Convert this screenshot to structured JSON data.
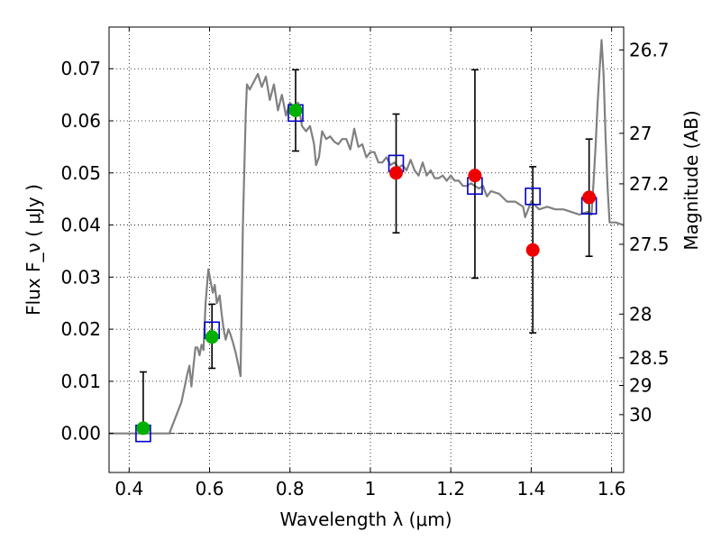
{
  "chart_data": {
    "type": "scatter",
    "xlabel": "Wavelength  λ (μm)",
    "ylabel": "Flux  F_ν  ( μJy )",
    "ylabel_right": "Magnitude (AB)",
    "xlim": [
      0.35,
      1.63
    ],
    "ylim": [
      -0.0075,
      0.078
    ],
    "grid": true,
    "x_ticks": [
      0.4,
      0.6,
      0.8,
      1.0,
      1.2,
      1.4,
      1.6
    ],
    "x_tick_labels": [
      "0.4",
      "0.6",
      "0.8",
      "1",
      "1.2",
      "1.4",
      "1.6"
    ],
    "y_ticks": [
      0.0,
      0.01,
      0.02,
      0.03,
      0.04,
      0.05,
      0.06,
      0.07
    ],
    "y_tick_labels": [
      "0.00",
      "0.01",
      "0.02",
      "0.03",
      "0.04",
      "0.05",
      "0.06",
      "0.07"
    ],
    "right_ticks": [
      {
        "label": "26.7",
        "flux": 0.0736
      },
      {
        "label": "27",
        "flux": 0.0576
      },
      {
        "label": "27.2",
        "flux": 0.0479
      },
      {
        "label": "27.5",
        "flux": 0.0363
      },
      {
        "label": "28",
        "flux": 0.0229
      },
      {
        "label": "28.5",
        "flux": 0.0145
      },
      {
        "label": "29",
        "flux": 0.0092
      },
      {
        "label": "30",
        "flux": 0.0036
      }
    ],
    "model_spectrum": {
      "color": "#808080",
      "points": [
        [
          0.35,
          0.0
        ],
        [
          0.5,
          0.0
        ],
        [
          0.53,
          0.006
        ],
        [
          0.545,
          0.0115
        ],
        [
          0.55,
          0.013
        ],
        [
          0.555,
          0.009
        ],
        [
          0.56,
          0.013
        ],
        [
          0.565,
          0.0165
        ],
        [
          0.57,
          0.0165
        ],
        [
          0.575,
          0.015
        ],
        [
          0.58,
          0.017
        ],
        [
          0.585,
          0.016
        ],
        [
          0.59,
          0.025
        ],
        [
          0.597,
          0.0315
        ],
        [
          0.603,
          0.029
        ],
        [
          0.608,
          0.027
        ],
        [
          0.613,
          0.0285
        ],
        [
          0.618,
          0.025
        ],
        [
          0.625,
          0.0265
        ],
        [
          0.63,
          0.023
        ],
        [
          0.635,
          0.02
        ],
        [
          0.64,
          0.018
        ],
        [
          0.647,
          0.02
        ],
        [
          0.652,
          0.019
        ],
        [
          0.658,
          0.0175
        ],
        [
          0.665,
          0.0155
        ],
        [
          0.672,
          0.013
        ],
        [
          0.677,
          0.011
        ],
        [
          0.683,
          0.04
        ],
        [
          0.69,
          0.0615
        ],
        [
          0.693,
          0.067
        ],
        [
          0.7,
          0.066
        ],
        [
          0.71,
          0.0675
        ],
        [
          0.72,
          0.069
        ],
        [
          0.73,
          0.0665
        ],
        [
          0.74,
          0.0685
        ],
        [
          0.75,
          0.064
        ],
        [
          0.76,
          0.067
        ],
        [
          0.77,
          0.062
        ],
        [
          0.78,
          0.065
        ],
        [
          0.79,
          0.061
        ],
        [
          0.8,
          0.0635
        ],
        [
          0.81,
          0.0625
        ],
        [
          0.82,
          0.0635
        ],
        [
          0.83,
          0.059
        ],
        [
          0.84,
          0.058
        ],
        [
          0.85,
          0.059
        ],
        [
          0.86,
          0.0555
        ],
        [
          0.865,
          0.0515
        ],
        [
          0.872,
          0.053
        ],
        [
          0.88,
          0.058
        ],
        [
          0.89,
          0.0565
        ],
        [
          0.9,
          0.057
        ],
        [
          0.91,
          0.056
        ],
        [
          0.92,
          0.0555
        ],
        [
          0.93,
          0.0565
        ],
        [
          0.94,
          0.0565
        ],
        [
          0.95,
          0.0545
        ],
        [
          0.96,
          0.0585
        ],
        [
          0.97,
          0.055
        ],
        [
          0.98,
          0.0555
        ],
        [
          0.99,
          0.053
        ],
        [
          1.0,
          0.054
        ],
        [
          1.01,
          0.054
        ],
        [
          1.02,
          0.052
        ],
        [
          1.03,
          0.052
        ],
        [
          1.04,
          0.053
        ],
        [
          1.05,
          0.0515
        ],
        [
          1.06,
          0.052
        ],
        [
          1.07,
          0.051
        ],
        [
          1.08,
          0.0515
        ],
        [
          1.09,
          0.0505
        ],
        [
          1.1,
          0.0525
        ],
        [
          1.11,
          0.0505
        ],
        [
          1.12,
          0.0495
        ],
        [
          1.13,
          0.052
        ],
        [
          1.14,
          0.0495
        ],
        [
          1.15,
          0.0505
        ],
        [
          1.16,
          0.049
        ],
        [
          1.17,
          0.049
        ],
        [
          1.18,
          0.0495
        ],
        [
          1.19,
          0.0485
        ],
        [
          1.2,
          0.0495
        ],
        [
          1.21,
          0.0485
        ],
        [
          1.22,
          0.0485
        ],
        [
          1.23,
          0.0475
        ],
        [
          1.24,
          0.0475
        ],
        [
          1.25,
          0.048
        ],
        [
          1.26,
          0.0475
        ],
        [
          1.27,
          0.047
        ],
        [
          1.28,
          0.0475
        ],
        [
          1.29,
          0.0455
        ],
        [
          1.3,
          0.0465
        ],
        [
          1.32,
          0.046
        ],
        [
          1.34,
          0.0445
        ],
        [
          1.36,
          0.0445
        ],
        [
          1.38,
          0.0435
        ],
        [
          1.385,
          0.0415
        ],
        [
          1.39,
          0.0425
        ],
        [
          1.4,
          0.0445
        ],
        [
          1.42,
          0.043
        ],
        [
          1.44,
          0.0435
        ],
        [
          1.46,
          0.043
        ],
        [
          1.48,
          0.043
        ],
        [
          1.5,
          0.0425
        ],
        [
          1.52,
          0.042
        ],
        [
          1.54,
          0.0425
        ],
        [
          1.55,
          0.042
        ],
        [
          1.555,
          0.048
        ],
        [
          1.56,
          0.055
        ],
        [
          1.565,
          0.063
        ],
        [
          1.57,
          0.0695
        ],
        [
          1.575,
          0.0755
        ],
        [
          1.58,
          0.069
        ],
        [
          1.585,
          0.057
        ],
        [
          1.59,
          0.047
        ],
        [
          1.595,
          0.0405
        ],
        [
          1.61,
          0.0405
        ],
        [
          1.63,
          0.04
        ]
      ]
    },
    "series": [
      {
        "marker": "open-square",
        "color": "#0000cc",
        "points": [
          {
            "x": 0.435,
            "y": 0.0
          },
          {
            "x": 0.606,
            "y": 0.0198
          },
          {
            "x": 0.814,
            "y": 0.0615
          },
          {
            "x": 1.064,
            "y": 0.0518
          },
          {
            "x": 1.26,
            "y": 0.0475
          },
          {
            "x": 1.404,
            "y": 0.0455
          },
          {
            "x": 1.544,
            "y": 0.0437
          }
        ]
      },
      {
        "marker": "filled-circle",
        "color": "#00b000",
        "points": [
          {
            "x": 0.435,
            "y": 0.001,
            "yerr_low": 0.001,
            "yerr_high": 0.0118
          },
          {
            "x": 0.606,
            "y": 0.0185,
            "yerr_low": 0.0125,
            "yerr_high": 0.0248
          },
          {
            "x": 0.814,
            "y": 0.062,
            "yerr_low": 0.0542,
            "yerr_high": 0.0698
          }
        ]
      },
      {
        "marker": "filled-circle",
        "color": "#ee0000",
        "points": [
          {
            "x": 1.064,
            "y": 0.05,
            "yerr_low": 0.0385,
            "yerr_high": 0.0613
          },
          {
            "x": 1.26,
            "y": 0.0495,
            "yerr_low": 0.0298,
            "yerr_high": 0.0698
          },
          {
            "x": 1.404,
            "y": 0.0352,
            "yerr_low": 0.0193,
            "yerr_high": 0.0512
          },
          {
            "x": 1.544,
            "y": 0.0453,
            "yerr_low": 0.034,
            "yerr_high": 0.0565
          }
        ]
      }
    ]
  }
}
